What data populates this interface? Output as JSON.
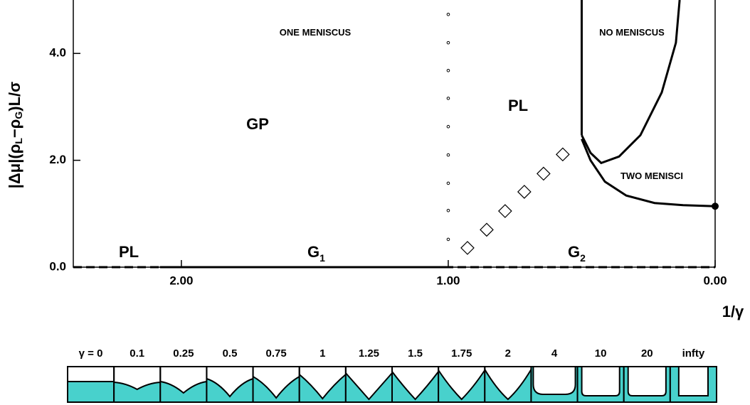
{
  "chart_data": {
    "type": "line",
    "x_label": "1/γ",
    "y_label_parts": [
      "|Δμ|(ρ",
      "L",
      "−ρ",
      "G",
      ")L/σ"
    ],
    "xlim": [
      2.405,
      0
    ],
    "ylim": [
      0,
      5.0
    ],
    "xticks": [
      {
        "value": 2,
        "label": "2.00"
      },
      {
        "value": 1,
        "label": "1.00"
      },
      {
        "value": 0,
        "label": "0.00"
      }
    ],
    "yticks": [
      {
        "value": 0,
        "label": "0.0"
      },
      {
        "value": 2,
        "label": "2.0"
      },
      {
        "value": 4,
        "label": "4.0"
      }
    ],
    "color": "#000000",
    "series": [
      {
        "x": [
          1,
          1,
          1,
          1,
          1,
          1,
          1,
          1,
          1
        ],
        "values": [
          0.52,
          1.06,
          1.57,
          2.1,
          2.63,
          3.16,
          3.68,
          4.2,
          4.73
        ],
        "marker": "circle-open",
        "line": "none"
      },
      {
        "x": [
          0.928,
          0.856,
          0.787,
          0.715,
          0.643,
          0.571
        ],
        "values": [
          0.36,
          0.7,
          1.05,
          1.41,
          1.75,
          2.11
        ],
        "marker": "diamond-open",
        "line": "none"
      },
      {
        "x": [
          0.5,
          0.5
        ],
        "values": [
          2.47,
          5.0
        ],
        "marker": "none",
        "line": "solid"
      },
      {
        "x": [
          0.5,
          0.467,
          0.427,
          0.36,
          0.28,
          0.2,
          0.147,
          0.133
        ],
        "values": [
          2.47,
          2.14,
          1.95,
          2.07,
          2.47,
          3.27,
          4.2,
          5.0
        ],
        "marker": "none",
        "line": "solid"
      },
      {
        "x": [
          0.5,
          0.467,
          0.413,
          0.333,
          0.227,
          0.12,
          0
        ],
        "values": [
          2.4,
          2.0,
          1.6,
          1.34,
          1.2,
          1.16,
          1.14
        ],
        "marker": "none",
        "line": "solid"
      },
      {
        "x": [
          2.405,
          0
        ],
        "values": [
          0,
          0
        ],
        "marker": "none",
        "line": "dashed"
      },
      {
        "x": [
          2.08,
          1
        ],
        "values": [
          0,
          0
        ],
        "marker": "none",
        "line": "solid"
      },
      {
        "x": [
          0
        ],
        "values": [
          1.14
        ],
        "marker": "circle-filled",
        "line": "none"
      }
    ],
    "annotations": [
      {
        "text": "ONE MENISCUS"
      },
      {
        "text": "NO MENISCUS"
      },
      {
        "text": "TWO MENISCI"
      },
      {
        "text": "PL"
      },
      {
        "text": "GP"
      },
      {
        "text": "PL"
      },
      {
        "text": "G",
        "sub": "1"
      },
      {
        "text": "G",
        "sub": "2"
      }
    ],
    "strip_labels": [
      "γ = 0",
      "0.1",
      "0.25",
      "0.5",
      "0.75",
      "1",
      "1.25",
      "1.5",
      "1.75",
      "2",
      "4",
      "10",
      "20",
      "infty"
    ],
    "liquid_color": "#48d1cc"
  }
}
